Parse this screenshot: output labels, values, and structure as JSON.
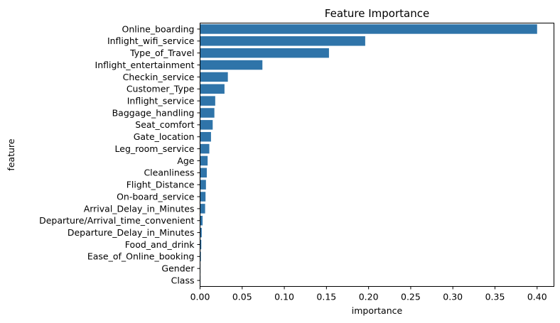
{
  "chart_data": {
    "type": "bar",
    "orientation": "horizontal",
    "title": "Feature Importance",
    "xlabel": "importance",
    "ylabel": "feature",
    "xlim": [
      0,
      0.42
    ],
    "xticks": [
      "0.00",
      "0.05",
      "0.10",
      "0.15",
      "0.20",
      "0.25",
      "0.30",
      "0.35",
      "0.40"
    ],
    "bar_color": "#2f74a9",
    "grid": false,
    "categories": [
      "Online_boarding",
      "Inflight_wifi_service",
      "Type_of_Travel",
      "Inflight_entertainment",
      "Checkin_service",
      "Customer_Type",
      "Inflight_service",
      "Baggage_handling",
      "Seat_comfort",
      "Gate_location",
      "Leg_room_service",
      "Age",
      "Cleanliness",
      "Flight_Distance",
      "On-board_service",
      "Arrival_Delay_in_Minutes",
      "Departure/Arrival_time_convenient",
      "Departure_Delay_in_Minutes",
      "Food_and_drink",
      "Ease_of_Online_booking",
      "Gender",
      "Class"
    ],
    "values": [
      0.4,
      0.196,
      0.153,
      0.074,
      0.033,
      0.029,
      0.018,
      0.017,
      0.015,
      0.013,
      0.011,
      0.009,
      0.008,
      0.007,
      0.0065,
      0.006,
      0.003,
      0.002,
      0.0015,
      0.001,
      0.0005,
      0.0003
    ]
  }
}
